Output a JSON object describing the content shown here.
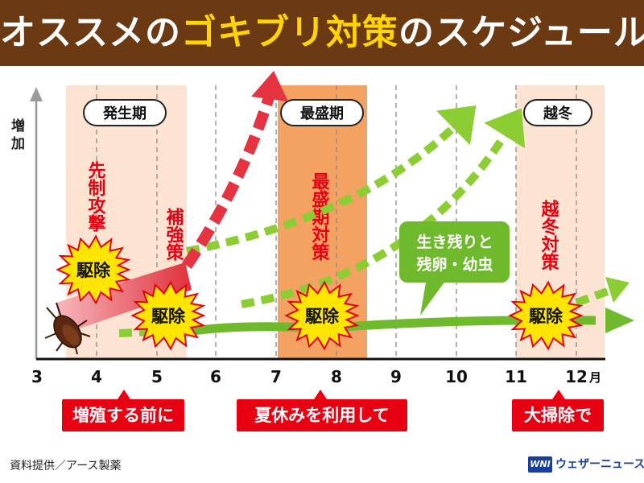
{
  "title": {
    "part1": "オススメの",
    "part2": "ゴキブリ対策",
    "part3": "のスケジュール"
  },
  "y_axis_label": "増加",
  "months": [
    "3",
    "4",
    "5",
    "6",
    "7",
    "8",
    "9",
    "10",
    "11",
    "12"
  ],
  "month_unit": "月",
  "periods": {
    "hassei": "発生期",
    "saisei": "最盛期",
    "ettou": "越冬"
  },
  "vertical_labels": {
    "senseikougeki": "先制攻撃",
    "hokyousaku": "補強策",
    "saiseikitaisaku": "最盛期対策",
    "ettoutaisaku": "越冬対策"
  },
  "burst_label": "駆除",
  "callout": {
    "line1": "生き残りと",
    "line2": "残卵・幼虫"
  },
  "bottom_tags": {
    "tag1": "増殖する前に",
    "tag2": "夏休みを利用して",
    "tag3": "大掃除で"
  },
  "source": "資料提供／アース製薬",
  "logo": {
    "mark": "WNI",
    "text": "ウェザーニュース"
  },
  "colors": {
    "header_bg": "#6b3a12",
    "title_accent": "#ffd400",
    "red": "#e60012",
    "green": "#6fba2c",
    "light_green": "#8ccd33",
    "peak_orange": "#f4a261",
    "light_orange": "#fde3d1",
    "burst_yellow": "#ffe500"
  }
}
